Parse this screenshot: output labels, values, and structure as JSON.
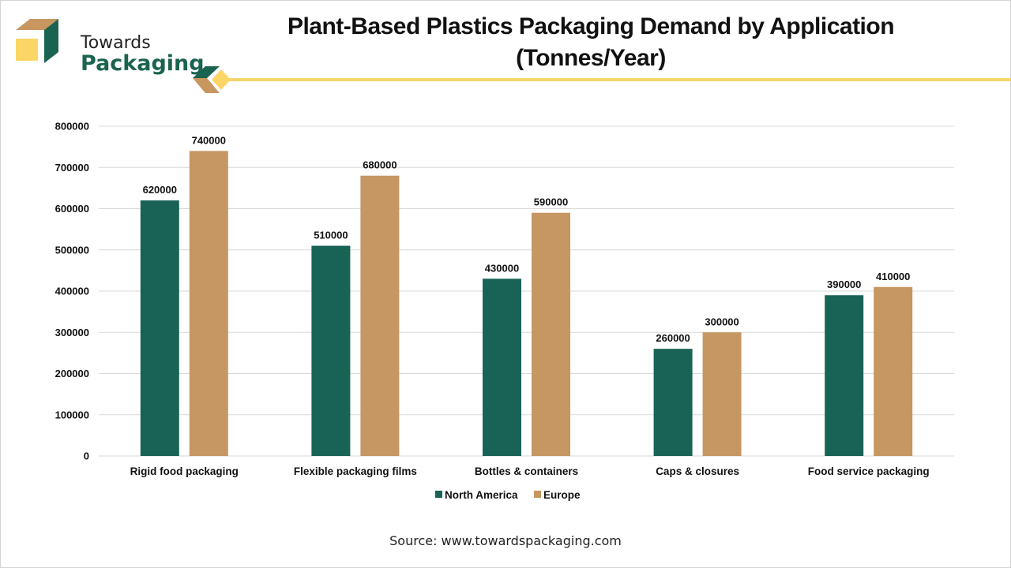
{
  "brand": {
    "line1": "Towards",
    "line2": "Packaging",
    "colors": {
      "green": "#1b6351",
      "tan": "#c8965f",
      "yellow": "#fbd666",
      "rule": "#f5d66b"
    }
  },
  "source": "Source: www.towardspackaging.com",
  "chart_data": {
    "type": "bar",
    "title": "Plant-Based Plastics Packaging Demand by Application",
    "subtitle": "(Tonnes/Year)",
    "xlabel": "",
    "ylabel": "",
    "categories": [
      "Rigid food packaging",
      "Flexible packaging films",
      "Bottles & containers",
      "Caps & closures",
      "Food service packaging"
    ],
    "series": [
      {
        "name": "North America",
        "color": "#196356",
        "values": [
          620000,
          510000,
          430000,
          260000,
          390000
        ]
      },
      {
        "name": "Europe",
        "color": "#c69663",
        "values": [
          740000,
          680000,
          590000,
          300000,
          410000
        ]
      }
    ],
    "ylim": [
      0,
      800000
    ],
    "yticks": [
      0,
      100000,
      200000,
      300000,
      400000,
      500000,
      600000,
      700000,
      800000
    ],
    "grid": true,
    "data_labels": true,
    "legend": "bottom-center"
  }
}
